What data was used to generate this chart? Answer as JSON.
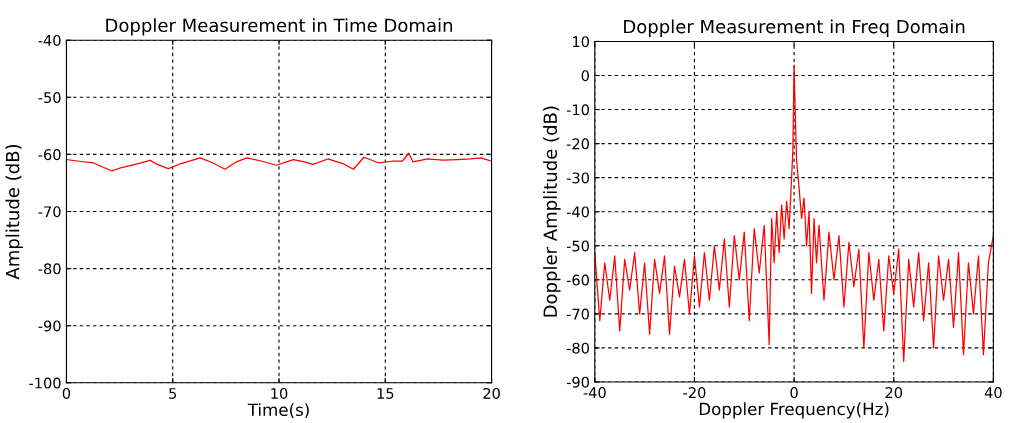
{
  "chart_data": [
    {
      "type": "line",
      "title": "Doppler Measurement in Time Domain",
      "xlabel": "Time(s)",
      "ylabel": "Amplitude (dB)",
      "xlim": [
        0,
        20
      ],
      "xticks": [
        0,
        5,
        10,
        15,
        20
      ],
      "ylim": [
        -100,
        -40
      ],
      "yticks": [
        -100,
        -90,
        -80,
        -70,
        -60,
        -50,
        -40
      ],
      "grid": true,
      "line_style": "solid",
      "series": [
        {
          "color": "#ff0000",
          "x": [
            0,
            0.6,
            1.28,
            1.7,
            2.14,
            2.6,
            3.2,
            3.94,
            4.3,
            4.8,
            5.4,
            6.29,
            6.9,
            7.46,
            8.0,
            8.48,
            9.2,
            9.89,
            10.67,
            11.2,
            11.6,
            12.3,
            13.0,
            13.5,
            14.0,
            14.7,
            15.3,
            15.8,
            16.1,
            16.3,
            17.0,
            17.7,
            18.4,
            19.0,
            19.5,
            20
          ],
          "values": [
            -60.9,
            -61.2,
            -61.5,
            -62.2,
            -62.9,
            -62.3,
            -61.8,
            -61.05,
            -61.8,
            -62.5,
            -61.6,
            -60.6,
            -61.5,
            -62.6,
            -61.3,
            -60.6,
            -61.2,
            -61.9,
            -60.9,
            -61.3,
            -61.75,
            -60.8,
            -61.6,
            -62.6,
            -60.5,
            -61.5,
            -61.2,
            -61.2,
            -59.8,
            -61.3,
            -60.8,
            -61.0,
            -60.9,
            -60.8,
            -60.6,
            -61.2
          ]
        }
      ]
    },
    {
      "type": "line",
      "title": "Doppler Measurement in Freq Domain",
      "xlabel": "Doppler Frequency(Hz)",
      "ylabel": "Doppler Amplitude (dB)",
      "xlim": [
        -40,
        40
      ],
      "xticks": [
        -40,
        -20,
        0,
        20,
        40
      ],
      "ylim": [
        -90,
        10
      ],
      "yticks": [
        -90,
        -80,
        -70,
        -60,
        -50,
        -40,
        -30,
        -20,
        -10,
        0,
        10
      ],
      "grid": true,
      "line_style": "solid",
      "series": [
        {
          "color": "#ff0000",
          "x": [
            -40,
            -39,
            -38,
            -37,
            -36,
            -35,
            -34,
            -33,
            -32,
            -31,
            -30,
            -29,
            -28,
            -27,
            -26,
            -25,
            -24,
            -23,
            -22,
            -21,
            -20,
            -19,
            -18,
            -17,
            -16,
            -15,
            -14,
            -13,
            -12,
            -11,
            -10,
            -9,
            -8,
            -7,
            -6,
            -5,
            -4.5,
            -4,
            -3.5,
            -3,
            -2.5,
            -2,
            -1.5,
            -1,
            -0.5,
            -0.25,
            0,
            0.25,
            0.5,
            1,
            1.5,
            2,
            2.5,
            3,
            3.5,
            4,
            4.5,
            5,
            6,
            7,
            8,
            9,
            10,
            11,
            12,
            13,
            14,
            15,
            16,
            17,
            18,
            19,
            20,
            21,
            22,
            23,
            24,
            25,
            26,
            27,
            28,
            29,
            30,
            31,
            32,
            33,
            34,
            35,
            36,
            37,
            38,
            39,
            40
          ],
          "values": [
            -52,
            -72,
            -55,
            -66,
            -53,
            -75,
            -54,
            -63,
            -52,
            -70,
            -55,
            -76,
            -54,
            -64,
            -53,
            -76,
            -56,
            -65,
            -54,
            -70,
            -53,
            -68,
            -52,
            -66,
            -50,
            -63,
            -48,
            -68,
            -47,
            -60,
            -46,
            -72,
            -45,
            -58,
            -44,
            -79,
            -42,
            -55,
            -40,
            -52,
            -38,
            -48,
            -37,
            -45,
            -30,
            -22,
            3,
            -12,
            -25,
            -33,
            -42,
            -36,
            -50,
            -40,
            -64,
            -42,
            -55,
            -44,
            -66,
            -46,
            -60,
            -47,
            -68,
            -49,
            -62,
            -51,
            -80,
            -52,
            -66,
            -54,
            -75,
            -53,
            -64,
            -51,
            -84,
            -54,
            -68,
            -52,
            -72,
            -55,
            -80,
            -53,
            -66,
            -54,
            -74,
            -52,
            -82,
            -55,
            -70,
            -53,
            -82,
            -55,
            -47
          ]
        }
      ]
    }
  ]
}
